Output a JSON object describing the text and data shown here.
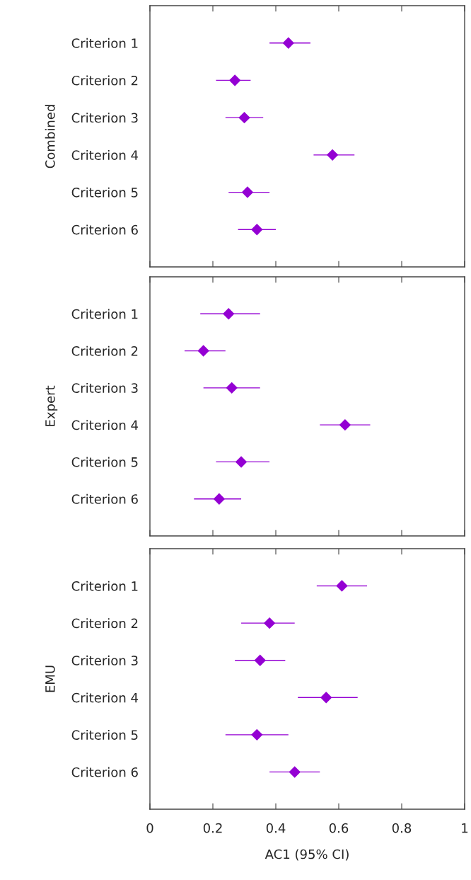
{
  "chart_data": [
    {
      "type": "scatter",
      "orientation": "horizontal",
      "ylabel": "Combined",
      "categories": [
        "Criterion 1",
        "Criterion 2",
        "Criterion 3",
        "Criterion 4",
        "Criterion 5",
        "Criterion 6"
      ],
      "values": [
        0.44,
        0.27,
        0.3,
        0.58,
        0.31,
        0.34
      ],
      "errors": [
        [
          0.38,
          0.51
        ],
        [
          0.21,
          0.32
        ],
        [
          0.24,
          0.36
        ],
        [
          0.52,
          0.65
        ],
        [
          0.25,
          0.38
        ],
        [
          0.28,
          0.4
        ]
      ],
      "color": "#9400d3",
      "marker": "diamond",
      "xlim": [
        0,
        1
      ],
      "xticks": [
        0,
        0.2,
        0.4,
        0.6,
        0.8,
        1
      ],
      "tick_labels": "y",
      "grid": false,
      "legend": false
    },
    {
      "type": "scatter",
      "orientation": "horizontal",
      "ylabel": "Expert",
      "categories": [
        "Criterion 1",
        "Criterion 2",
        "Criterion 3",
        "Criterion 4",
        "Criterion 5",
        "Criterion 6"
      ],
      "values": [
        0.25,
        0.17,
        0.26,
        0.62,
        0.29,
        0.22
      ],
      "errors": [
        [
          0.16,
          0.35
        ],
        [
          0.11,
          0.24
        ],
        [
          0.17,
          0.35
        ],
        [
          0.54,
          0.7
        ],
        [
          0.21,
          0.38
        ],
        [
          0.14,
          0.29
        ]
      ],
      "color": "#9400d3",
      "marker": "diamond",
      "xlim": [
        0,
        1
      ],
      "xticks": [
        0,
        0.2,
        0.4,
        0.6,
        0.8,
        1
      ],
      "tick_labels": "y",
      "grid": false,
      "legend": false
    },
    {
      "type": "scatter",
      "orientation": "horizontal",
      "ylabel": "EMU",
      "xlabel": "AC1 (95% CI)",
      "categories": [
        "Criterion 1",
        "Criterion 2",
        "Criterion 3",
        "Criterion 4",
        "Criterion 5",
        "Criterion 6"
      ],
      "values": [
        0.61,
        0.38,
        0.35,
        0.56,
        0.34,
        0.46
      ],
      "errors": [
        [
          0.53,
          0.69
        ],
        [
          0.29,
          0.46
        ],
        [
          0.27,
          0.43
        ],
        [
          0.47,
          0.66
        ],
        [
          0.24,
          0.44
        ],
        [
          0.38,
          0.54
        ]
      ],
      "color": "#9400d3",
      "marker": "diamond",
      "xlim": [
        0,
        1
      ],
      "xticks": [
        0,
        0.2,
        0.4,
        0.6,
        0.8,
        1
      ],
      "grid": false,
      "legend": false
    }
  ]
}
